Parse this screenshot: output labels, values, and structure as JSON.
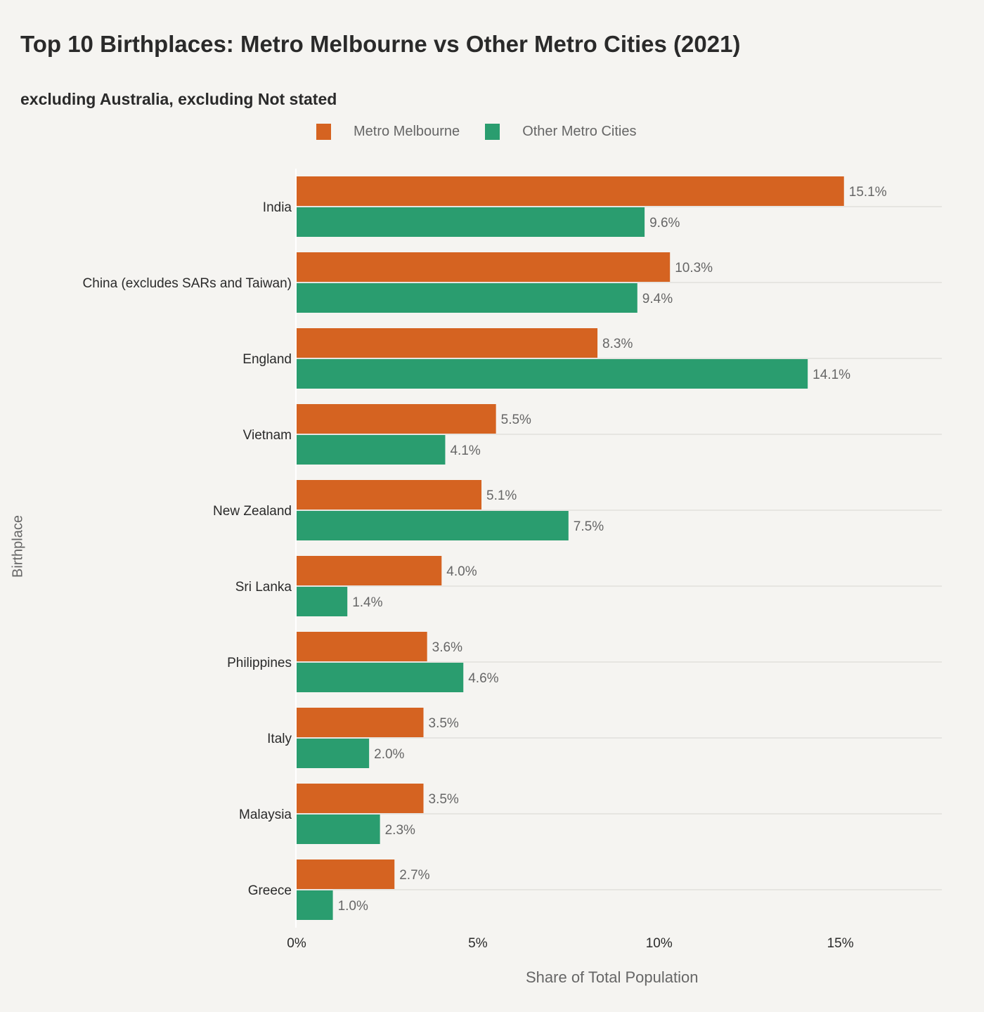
{
  "chart_data": {
    "type": "bar",
    "orientation": "horizontal",
    "title": "Top 10 Birthplaces: Metro Melbourne vs Other Metro Cities (2021)",
    "subtitle": "excluding Australia, excluding Not stated",
    "xlabel": "Share of Total Population",
    "ylabel": "Birthplace",
    "xlim": [
      0,
      17.8
    ],
    "xticks": [
      "0%",
      "5%",
      "10%",
      "15%"
    ],
    "legend_position": "top",
    "categories": [
      "India",
      "China (excludes SARs and Taiwan)",
      "England",
      "Vietnam",
      "New Zealand",
      "Sri Lanka",
      "Philippines",
      "Italy",
      "Malaysia",
      "Greece"
    ],
    "series": [
      {
        "name": "Metro Melbourne",
        "color": "#D56321",
        "values": [
          15.1,
          10.3,
          8.3,
          5.5,
          5.1,
          4.0,
          3.6,
          3.5,
          3.5,
          2.7
        ],
        "labels": [
          "15.1%",
          "10.3%",
          "8.3%",
          "5.5%",
          "5.1%",
          "4.0%",
          "3.6%",
          "3.5%",
          "3.5%",
          "2.7%"
        ]
      },
      {
        "name": "Other Metro Cities",
        "color": "#2A9D6F",
        "values": [
          9.6,
          9.4,
          14.1,
          4.1,
          7.5,
          1.4,
          4.6,
          2.0,
          2.3,
          1.0
        ],
        "labels": [
          "9.6%",
          "9.4%",
          "14.1%",
          "4.1%",
          "7.5%",
          "1.4%",
          "4.6%",
          "2.0%",
          "2.3%",
          "1.0%"
        ]
      }
    ]
  }
}
